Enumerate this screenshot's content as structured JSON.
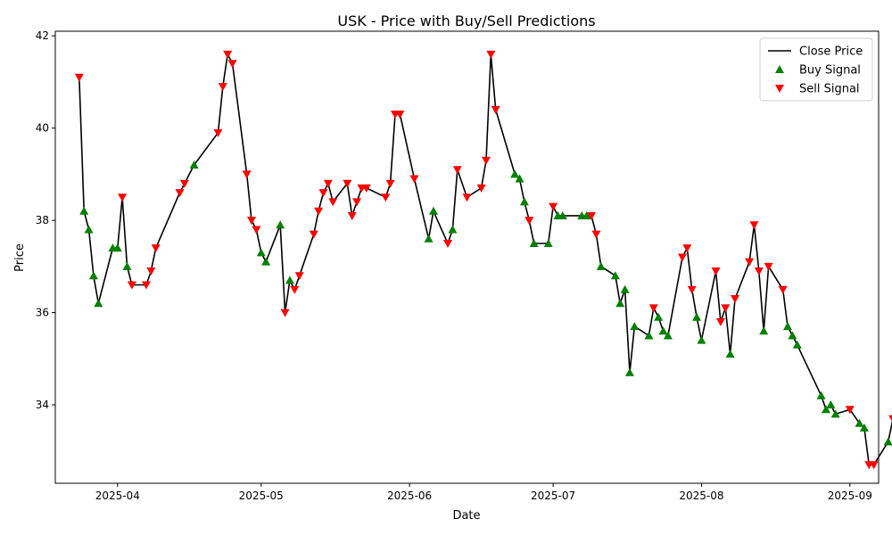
{
  "chart_data": {
    "type": "line",
    "title": "USK - Price with Buy/Sell Predictions",
    "xlabel": "Date",
    "ylabel": "Price",
    "x_range": [
      "2025-03-19",
      "2025-09-07"
    ],
    "ylim": [
      32.3,
      42.1
    ],
    "x_ticks": [
      {
        "date": "2025-04-01",
        "label": "2025-04"
      },
      {
        "date": "2025-05-01",
        "label": "2025-05"
      },
      {
        "date": "2025-06-01",
        "label": "2025-06"
      },
      {
        "date": "2025-07-01",
        "label": "2025-07"
      },
      {
        "date": "2025-08-01",
        "label": "2025-08"
      },
      {
        "date": "2025-09-01",
        "label": "2025-09"
      }
    ],
    "y_ticks": [
      34,
      36,
      38,
      40,
      42
    ],
    "legend": {
      "position": "top-right",
      "entries": [
        {
          "label": "Close Price",
          "kind": "line",
          "color": "#000000"
        },
        {
          "label": "Buy Signal",
          "kind": "marker-up",
          "color": "#008000"
        },
        {
          "label": "Sell Signal",
          "kind": "marker-down",
          "color": "#ff0000"
        }
      ]
    },
    "series": [
      {
        "name": "Close Price",
        "color": "#000000",
        "points": [
          [
            "2025-03-24",
            41.1,
            "sell"
          ],
          [
            "2025-03-25",
            38.2,
            "buy"
          ],
          [
            "2025-03-26",
            37.8,
            "buy"
          ],
          [
            "2025-03-27",
            36.8,
            "buy"
          ],
          [
            "2025-03-28",
            36.2,
            "buy"
          ],
          [
            "2025-03-31",
            37.4,
            "buy"
          ],
          [
            "2025-04-01",
            37.4,
            "buy"
          ],
          [
            "2025-04-02",
            38.5,
            "sell"
          ],
          [
            "2025-04-03",
            37.0,
            "buy"
          ],
          [
            "2025-04-04",
            36.6,
            "sell"
          ],
          [
            "2025-04-07",
            36.6,
            "sell"
          ],
          [
            "2025-04-08",
            36.9,
            "sell"
          ],
          [
            "2025-04-09",
            37.4,
            "sell"
          ],
          [
            "2025-04-14",
            38.6,
            "sell"
          ],
          [
            "2025-04-15",
            38.8,
            "sell"
          ],
          [
            "2025-04-17",
            39.2,
            "buy"
          ],
          [
            "2025-04-22",
            39.9,
            "sell"
          ],
          [
            "2025-04-23",
            40.9,
            "sell"
          ],
          [
            "2025-04-24",
            41.6,
            "sell"
          ],
          [
            "2025-04-25",
            41.4,
            "sell"
          ],
          [
            "2025-04-28",
            39.0,
            "sell"
          ],
          [
            "2025-04-29",
            38.0,
            "sell"
          ],
          [
            "2025-04-30",
            37.8,
            "sell"
          ],
          [
            "2025-05-01",
            37.3,
            "buy"
          ],
          [
            "2025-05-02",
            37.1,
            "buy"
          ],
          [
            "2025-05-05",
            37.9,
            "buy"
          ],
          [
            "2025-05-06",
            36.0,
            "sell"
          ],
          [
            "2025-05-07",
            36.7,
            "buy"
          ],
          [
            "2025-05-08",
            36.5,
            "sell"
          ],
          [
            "2025-05-09",
            36.8,
            "sell"
          ],
          [
            "2025-05-12",
            37.7,
            "sell"
          ],
          [
            "2025-05-13",
            38.2,
            "sell"
          ],
          [
            "2025-05-14",
            38.6,
            "sell"
          ],
          [
            "2025-05-15",
            38.8,
            "sell"
          ],
          [
            "2025-05-16",
            38.4,
            "sell"
          ],
          [
            "2025-05-19",
            38.8,
            "sell"
          ],
          [
            "2025-05-20",
            38.1,
            "sell"
          ],
          [
            "2025-05-21",
            38.4,
            "sell"
          ],
          [
            "2025-05-22",
            38.7,
            "sell"
          ],
          [
            "2025-05-23",
            38.7,
            "sell"
          ],
          [
            "2025-05-27",
            38.5,
            "sell"
          ],
          [
            "2025-05-28",
            38.8,
            "sell"
          ],
          [
            "2025-05-29",
            40.3,
            "sell"
          ],
          [
            "2025-05-30",
            40.3,
            "sell"
          ],
          [
            "2025-06-02",
            38.9,
            "sell"
          ],
          [
            "2025-06-05",
            37.6,
            "buy"
          ],
          [
            "2025-06-06",
            38.2,
            "buy"
          ],
          [
            "2025-06-09",
            37.5,
            "sell"
          ],
          [
            "2025-06-10",
            37.8,
            "buy"
          ],
          [
            "2025-06-11",
            39.1,
            "sell"
          ],
          [
            "2025-06-13",
            38.5,
            "sell"
          ],
          [
            "2025-06-16",
            38.7,
            "sell"
          ],
          [
            "2025-06-17",
            39.3,
            "sell"
          ],
          [
            "2025-06-18",
            41.6,
            "sell"
          ],
          [
            "2025-06-19",
            40.4,
            "sell"
          ],
          [
            "2025-06-23",
            39.0,
            "buy"
          ],
          [
            "2025-06-24",
            38.9,
            "buy"
          ],
          [
            "2025-06-25",
            38.4,
            "buy"
          ],
          [
            "2025-06-26",
            38.0,
            "sell"
          ],
          [
            "2025-06-27",
            37.5,
            "buy"
          ],
          [
            "2025-06-30",
            37.5,
            "buy"
          ],
          [
            "2025-07-01",
            38.3,
            "sell"
          ],
          [
            "2025-07-02",
            38.1,
            "buy"
          ],
          [
            "2025-07-03",
            38.1,
            "buy"
          ],
          [
            "2025-07-07",
            38.1,
            "buy"
          ],
          [
            "2025-07-08",
            38.1,
            "buy"
          ],
          [
            "2025-07-09",
            38.1,
            "sell"
          ],
          [
            "2025-07-10",
            37.7,
            "sell"
          ],
          [
            "2025-07-11",
            37.0,
            "buy"
          ],
          [
            "2025-07-14",
            36.8,
            "buy"
          ],
          [
            "2025-07-15",
            36.2,
            "buy"
          ],
          [
            "2025-07-16",
            36.5,
            "buy"
          ],
          [
            "2025-07-17",
            34.7,
            "buy"
          ],
          [
            "2025-07-18",
            35.7,
            "buy"
          ],
          [
            "2025-07-21",
            35.5,
            "buy"
          ],
          [
            "2025-07-22",
            36.1,
            "sell"
          ],
          [
            "2025-07-23",
            35.9,
            "buy"
          ],
          [
            "2025-07-24",
            35.6,
            "buy"
          ],
          [
            "2025-07-25",
            35.5,
            "buy"
          ],
          [
            "2025-07-28",
            37.2,
            "sell"
          ],
          [
            "2025-07-29",
            37.4,
            "sell"
          ],
          [
            "2025-07-30",
            36.5,
            "sell"
          ],
          [
            "2025-07-31",
            35.9,
            "buy"
          ],
          [
            "2025-08-01",
            35.4,
            "buy"
          ],
          [
            "2025-08-04",
            36.9,
            "sell"
          ],
          [
            "2025-08-05",
            35.8,
            "sell"
          ],
          [
            "2025-08-06",
            36.1,
            "sell"
          ],
          [
            "2025-08-07",
            35.1,
            "buy"
          ],
          [
            "2025-08-08",
            36.3,
            "sell"
          ],
          [
            "2025-08-11",
            37.1,
            "sell"
          ],
          [
            "2025-08-12",
            37.9,
            "sell"
          ],
          [
            "2025-08-13",
            36.9,
            "sell"
          ],
          [
            "2025-08-14",
            35.6,
            "buy"
          ],
          [
            "2025-08-15",
            37.0,
            "sell"
          ],
          [
            "2025-08-18",
            36.5,
            "sell"
          ],
          [
            "2025-08-19",
            35.7,
            "buy"
          ],
          [
            "2025-08-20",
            35.5,
            "buy"
          ],
          [
            "2025-08-21",
            35.3,
            "buy"
          ],
          [
            "2025-08-26",
            34.2,
            "buy"
          ],
          [
            "2025-08-27",
            33.9,
            "buy"
          ],
          [
            "2025-08-28",
            34.0,
            "buy"
          ],
          [
            "2025-08-29",
            33.8,
            "buy"
          ],
          [
            "2025-09-01",
            33.9,
            "sell"
          ],
          [
            "2025-09-03",
            33.6,
            "buy"
          ],
          [
            "2025-09-04",
            33.5,
            "buy"
          ],
          [
            "2025-09-05",
            32.7,
            "sell"
          ],
          [
            "2025-09-06",
            32.7,
            "sell"
          ],
          [
            "2025-09-09",
            33.2,
            "buy"
          ],
          [
            "2025-09-10",
            33.7,
            "sell"
          ]
        ]
      }
    ]
  }
}
